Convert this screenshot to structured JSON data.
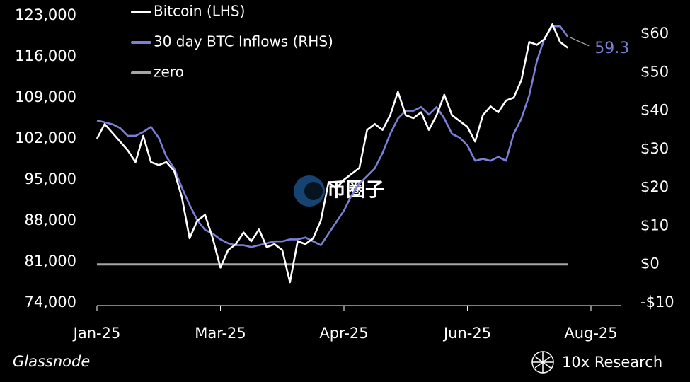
{
  "chart_data": {
    "type": "line",
    "categories": [
      "Jan-25",
      null,
      null,
      null,
      null,
      null,
      null,
      null,
      null,
      null,
      null,
      null,
      null,
      null,
      null,
      null,
      "Mar-25",
      null,
      null,
      null,
      null,
      null,
      null,
      null,
      null,
      null,
      null,
      null,
      null,
      null,
      null,
      null,
      "Apr-25",
      null,
      null,
      null,
      null,
      null,
      null,
      null,
      null,
      null,
      null,
      null,
      null,
      null,
      null,
      null,
      "Jun-25",
      null,
      null,
      null,
      null,
      null,
      null,
      null,
      null,
      null,
      null,
      null,
      null,
      null,
      null,
      null,
      "Aug-25"
    ],
    "series": [
      {
        "name": "Bitcoin (LHS)",
        "color": "#ffffff",
        "axis": "y",
        "values": [
          102000,
          104500,
          103000,
          101500,
          100000,
          98000,
          102500,
          98000,
          97500,
          98000,
          96500,
          92000,
          85000,
          88000,
          89000,
          85000,
          80000,
          83000,
          84000,
          86000,
          84500,
          86500,
          83500,
          84000,
          83000,
          77500,
          84500,
          84000,
          85000,
          88000,
          94500,
          93500,
          95000,
          96000,
          97000,
          103500,
          104500,
          103500,
          106000,
          110000,
          106000,
          105500,
          106500,
          103500,
          106000,
          109500,
          106000,
          105000,
          104000,
          101500,
          106000,
          107500,
          106500,
          108500,
          109000,
          112000,
          118500,
          118000,
          119000,
          121500,
          118500,
          117500,
          null,
          null,
          null
        ]
      },
      {
        "name": "30 day BTC Inflows (RHS)",
        "color": "#7b7fd6",
        "axis": "y2",
        "values": [
          37.5,
          37,
          36.5,
          35.5,
          33.5,
          33.5,
          34.5,
          35.8,
          33,
          28,
          25,
          20,
          15.5,
          11.5,
          9,
          8,
          6.5,
          5.5,
          5,
          5,
          4.5,
          5,
          5.5,
          6,
          6,
          6.5,
          6.5,
          7,
          6,
          5,
          8,
          11,
          14,
          18,
          21,
          23,
          25,
          29,
          34,
          38,
          40,
          40,
          41,
          39,
          41,
          38,
          34,
          33,
          31,
          27,
          27.5,
          27,
          28,
          27,
          34,
          38,
          44,
          53,
          59,
          62,
          62,
          59.3,
          null,
          null,
          null
        ]
      },
      {
        "name": "zero",
        "color": "#a6a6a6",
        "axis": "y2",
        "values": [
          0,
          0,
          0,
          0,
          0,
          0,
          0,
          0,
          0,
          0,
          0,
          0,
          0,
          0,
          0,
          0,
          0,
          0,
          0,
          0,
          0,
          0,
          0,
          0,
          0,
          0,
          0,
          0,
          0,
          0,
          0,
          0,
          0,
          0,
          0,
          0,
          0,
          0,
          0,
          0,
          0,
          0,
          0,
          0,
          0,
          0,
          0,
          0,
          0,
          0,
          0,
          0,
          0,
          0,
          0,
          0,
          0,
          0,
          0,
          0,
          0,
          0,
          null,
          null,
          null
        ]
      }
    ],
    "ylim": [
      74000,
      123000
    ],
    "yticks": [
      {
        "value": 74000,
        "label": "74,000"
      },
      {
        "value": 81000,
        "label": "81,000"
      },
      {
        "value": 88000,
        "label": "88,000"
      },
      {
        "value": 95000,
        "label": "95,000"
      },
      {
        "value": 102000,
        "label": "102,000"
      },
      {
        "value": 109000,
        "label": "109,000"
      },
      {
        "value": 116000,
        "label": "116,000"
      },
      {
        "value": 123000,
        "label": "123,000"
      }
    ],
    "y2lim": [
      -10,
      64.8
    ],
    "y2ticks": [
      {
        "value": -10,
        "label": "-$10"
      },
      {
        "value": 0,
        "label": "$0"
      },
      {
        "value": 10,
        "label": "$10"
      },
      {
        "value": 20,
        "label": "$20"
      },
      {
        "value": 30,
        "label": "$30"
      },
      {
        "value": 40,
        "label": "$40"
      },
      {
        "value": 50,
        "label": "$50"
      },
      {
        "value": 60,
        "label": "$60"
      }
    ],
    "legend": "top-left",
    "source": "Glassnode",
    "brand": "10x Research",
    "watermark": "币圈子"
  }
}
